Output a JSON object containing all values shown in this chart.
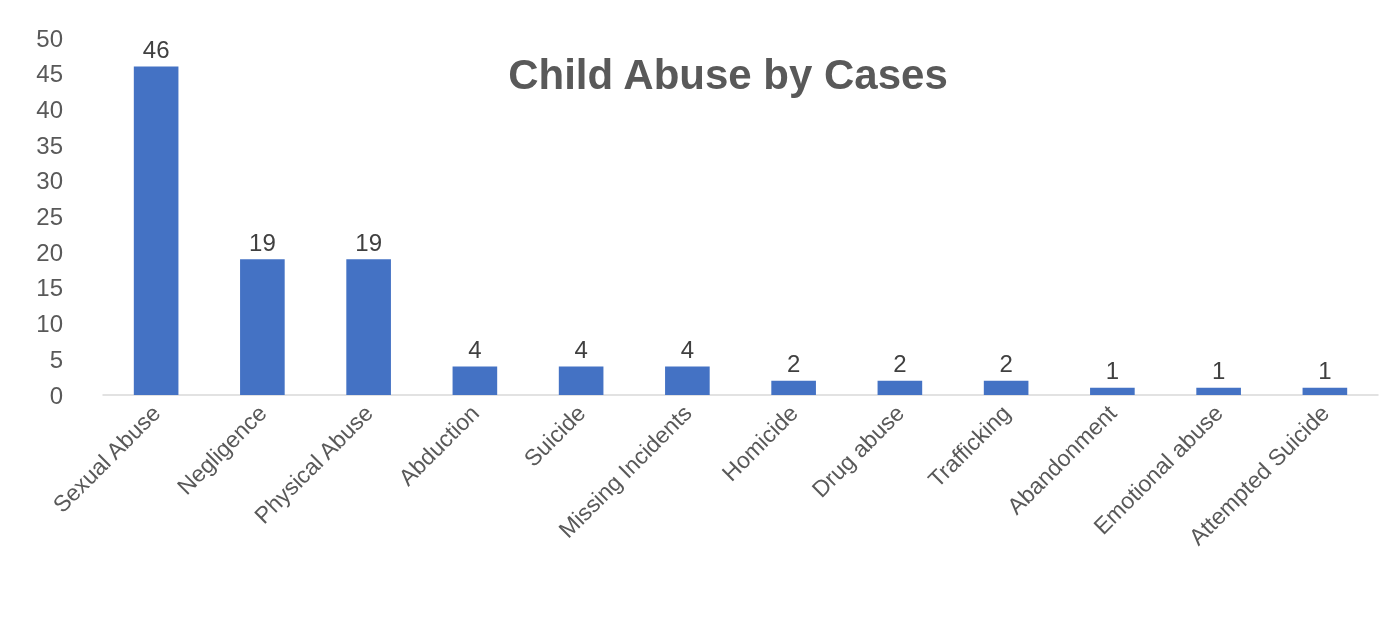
{
  "chart_data": {
    "type": "bar",
    "title": "Child Abuse by Cases",
    "categories": [
      "Sexual Abuse",
      "Negligence",
      "Physical Abuse",
      "Abduction",
      "Suicide",
      "Missing Incidents",
      "Homicide",
      "Drug abuse",
      "Trafficking",
      "Abandonment",
      "Emotional abuse",
      "Attempted Suicide"
    ],
    "values": [
      46,
      19,
      19,
      4,
      4,
      4,
      2,
      2,
      2,
      1,
      1,
      1
    ],
    "color": "#4472c4",
    "ylim": [
      0,
      50
    ],
    "yticks": [
      0,
      5,
      10,
      15,
      20,
      25,
      30,
      35,
      40,
      45,
      50
    ],
    "grid": false,
    "data_labels": true
  }
}
